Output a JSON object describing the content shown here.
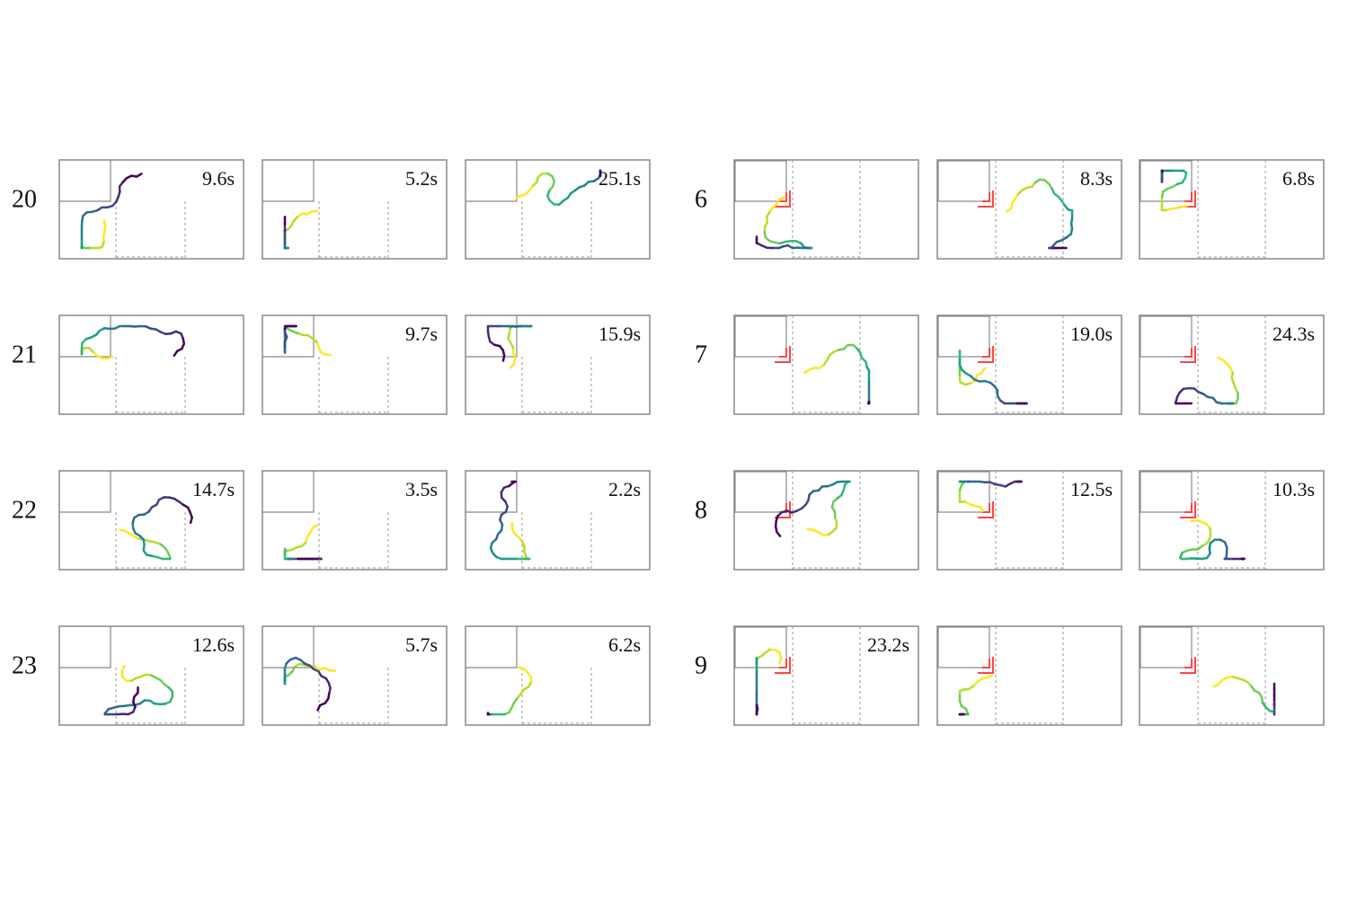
{
  "left": {
    "rows": [
      {
        "label": "20",
        "times": [
          "9.6s",
          "5.2s",
          "25.1s"
        ]
      },
      {
        "label": "21",
        "times": [
          null,
          "9.7s",
          "15.9s"
        ]
      },
      {
        "label": "22",
        "times": [
          "14.7s",
          "3.5s",
          "2.2s"
        ]
      },
      {
        "label": "23",
        "times": [
          "12.6s",
          "5.7s",
          "6.2s"
        ]
      }
    ]
  },
  "right": {
    "rows": [
      {
        "label": "6",
        "times": [
          null,
          "8.3s",
          "6.8s"
        ]
      },
      {
        "label": "7",
        "times": [
          null,
          "19.0s",
          "24.3s"
        ]
      },
      {
        "label": "8",
        "times": [
          null,
          "12.5s",
          "10.3s"
        ]
      },
      {
        "label": "9",
        "times": [
          "23.2s",
          null,
          null
        ]
      }
    ]
  }
}
